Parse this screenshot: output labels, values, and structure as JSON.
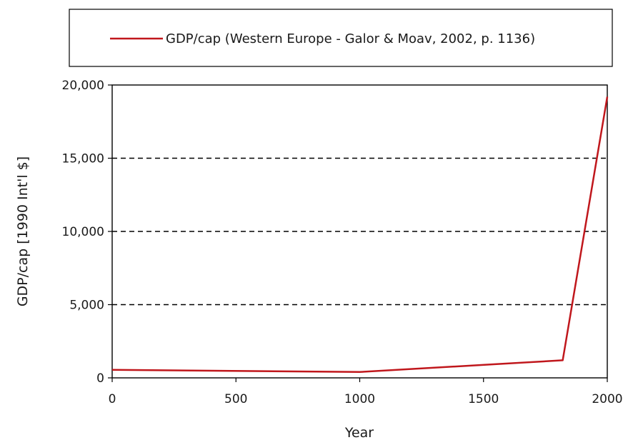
{
  "chart_data": {
    "type": "line",
    "xlabel": "Year",
    "ylabel": "GDP/cap [1990 Int'l $]",
    "xlim": [
      0,
      2000
    ],
    "ylim": [
      0,
      20000
    ],
    "x_ticks": [
      0,
      500,
      1000,
      1500,
      2000
    ],
    "x_tick_labels": [
      "0",
      "500",
      "1000",
      "1500",
      "2000"
    ],
    "y_ticks": [
      0,
      5000,
      10000,
      15000,
      20000
    ],
    "y_tick_labels": [
      "0",
      "5,000",
      "10,000",
      "15,000",
      "20,000"
    ],
    "grid": "horizontal dashed",
    "legend_position": "top",
    "series": [
      {
        "name": "GDP/cap (Western Europe - Galor & Moav, 2002, p. 1136)",
        "color": "#c0171c",
        "x": [
          0,
          1000,
          1820,
          2000
        ],
        "y": [
          550,
          400,
          1200,
          19200
        ]
      }
    ]
  }
}
